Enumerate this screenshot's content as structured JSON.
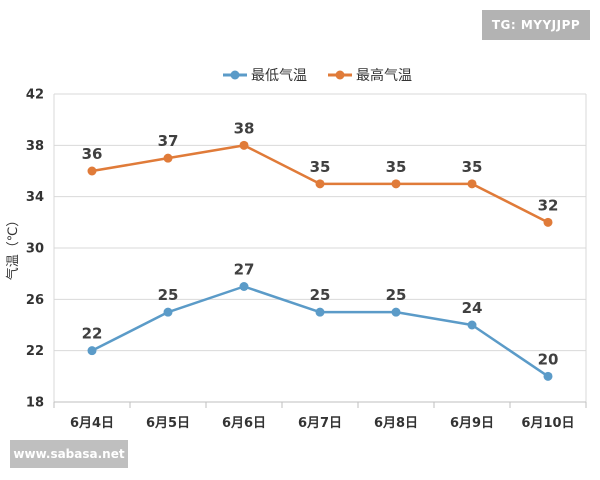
{
  "chart_data": {
    "type": "line",
    "categories": [
      "6月4日",
      "6月5日",
      "6月6日",
      "6月7日",
      "6月8日",
      "6月9日",
      "6月10日"
    ],
    "series": [
      {
        "name": "最低气温",
        "values": [
          22,
          25,
          27,
          25,
          25,
          24,
          20
        ],
        "color": "#5b9bc8"
      },
      {
        "name": "最高气温",
        "values": [
          36,
          37,
          38,
          35,
          35,
          35,
          32
        ],
        "color": "#e07b39"
      }
    ],
    "ylabel": "气温（℃）",
    "ylim": [
      18,
      42
    ],
    "yticks": [
      18,
      22,
      26,
      30,
      34,
      38,
      42
    ],
    "grid": true,
    "legend_position": "top-center"
  },
  "watermarks": {
    "tg": "TG: MYYJJPP",
    "site": "www.sabasa.net"
  }
}
